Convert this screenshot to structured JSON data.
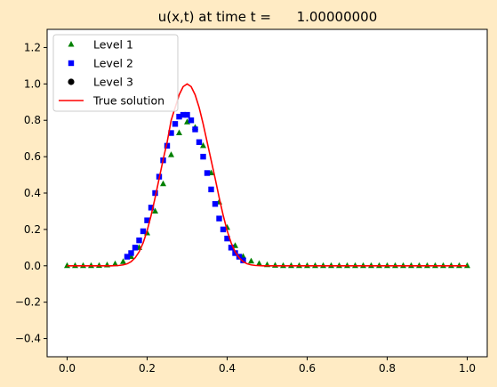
{
  "figure": {
    "background_color": "#ffebc4",
    "title": "u(x,t) at time t =      1.00000000"
  },
  "chart_data": {
    "type": "scatter",
    "title": "u(x,t) at time t =      1.00000000",
    "xlabel": "",
    "ylabel": "",
    "xlim": [
      -0.05,
      1.05
    ],
    "ylim": [
      -0.5,
      1.3
    ],
    "x_ticks": [
      "0.0",
      "0.2",
      "0.4",
      "0.6",
      "0.8",
      "1.0"
    ],
    "y_ticks": [
      "−0.4",
      "−0.2",
      "0.0",
      "0.2",
      "0.4",
      "0.6",
      "0.8",
      "1.0",
      "1.2"
    ],
    "grid": false,
    "legend_position": "top-left",
    "legend": [
      "Level 1",
      "Level 2",
      "Level 3",
      "True solution"
    ],
    "series": [
      {
        "name": "Level 1",
        "marker": "triangle-up",
        "color": "#008000",
        "x": [
          0.0,
          0.02,
          0.04,
          0.06,
          0.08,
          0.1,
          0.12,
          0.14,
          0.16,
          0.18,
          0.2,
          0.22,
          0.24,
          0.26,
          0.28,
          0.3,
          0.32,
          0.34,
          0.36,
          0.38,
          0.4,
          0.42,
          0.44,
          0.46,
          0.48,
          0.5,
          0.52,
          0.54,
          0.56,
          0.58,
          0.6,
          0.62,
          0.64,
          0.66,
          0.68,
          0.7,
          0.72,
          0.74,
          0.76,
          0.78,
          0.8,
          0.82,
          0.84,
          0.86,
          0.88,
          0.9,
          0.92,
          0.94,
          0.96,
          0.98,
          1.0
        ],
        "y": [
          0.0,
          0.0,
          0.0,
          0.0,
          0.001,
          0.004,
          0.01,
          0.022,
          0.05,
          0.1,
          0.18,
          0.3,
          0.45,
          0.61,
          0.73,
          0.79,
          0.76,
          0.66,
          0.51,
          0.35,
          0.21,
          0.11,
          0.05,
          0.025,
          0.012,
          0.005,
          0.002,
          0.0,
          0.0,
          0.0,
          0.0,
          0.0,
          0.0,
          0.0,
          0.0,
          0.0,
          0.0,
          0.0,
          0.0,
          0.0,
          0.0,
          0.0,
          0.0,
          0.0,
          0.0,
          0.0,
          0.0,
          0.0,
          0.0,
          0.0,
          0.0
        ]
      },
      {
        "name": "Level 2",
        "marker": "square",
        "color": "#0000ff",
        "x": [
          0.15,
          0.16,
          0.17,
          0.18,
          0.19,
          0.2,
          0.21,
          0.22,
          0.23,
          0.24,
          0.25,
          0.26,
          0.27,
          0.28,
          0.29,
          0.3,
          0.31,
          0.32,
          0.33,
          0.34,
          0.35,
          0.36,
          0.37,
          0.38,
          0.39,
          0.4,
          0.41,
          0.42,
          0.43,
          0.44
        ],
        "y": [
          0.05,
          0.07,
          0.1,
          0.14,
          0.19,
          0.25,
          0.32,
          0.4,
          0.49,
          0.58,
          0.66,
          0.73,
          0.78,
          0.82,
          0.83,
          0.83,
          0.8,
          0.75,
          0.68,
          0.6,
          0.51,
          0.42,
          0.34,
          0.26,
          0.2,
          0.15,
          0.1,
          0.07,
          0.05,
          0.03
        ]
      },
      {
        "name": "Level 3",
        "marker": "circle",
        "color": "#000000",
        "x": [],
        "y": []
      },
      {
        "name": "True solution",
        "line": "solid",
        "color": "#ff0000",
        "x": [
          0.0,
          0.01,
          0.02,
          0.03,
          0.04,
          0.05,
          0.06,
          0.07,
          0.08,
          0.09,
          0.1,
          0.11,
          0.12,
          0.13,
          0.14,
          0.15,
          0.16,
          0.17,
          0.18,
          0.19,
          0.2,
          0.21,
          0.22,
          0.23,
          0.24,
          0.25,
          0.26,
          0.27,
          0.28,
          0.29,
          0.3,
          0.31,
          0.32,
          0.33,
          0.34,
          0.35,
          0.36,
          0.37,
          0.38,
          0.39,
          0.4,
          0.41,
          0.42,
          0.43,
          0.44,
          0.45,
          0.46,
          0.47,
          0.48,
          0.49,
          0.5,
          0.52,
          0.54,
          0.56,
          0.58,
          0.6,
          0.65,
          0.7,
          0.75,
          0.8,
          0.85,
          0.9,
          0.95,
          1.0
        ],
        "y": [
          0.0,
          0.0,
          0.0,
          0.0,
          0.0,
          0.0,
          0.0,
          0.0,
          0.0,
          0.0,
          0.0,
          0.0,
          0.001,
          0.002,
          0.005,
          0.011,
          0.023,
          0.044,
          0.077,
          0.126,
          0.193,
          0.278,
          0.375,
          0.48,
          0.584,
          0.68,
          0.8,
          0.87,
          0.94,
          0.985,
          1.0,
          0.985,
          0.94,
          0.87,
          0.78,
          0.68,
          0.58,
          0.48,
          0.375,
          0.278,
          0.193,
          0.126,
          0.077,
          0.044,
          0.023,
          0.011,
          0.005,
          0.002,
          0.001,
          0.0,
          0.0,
          0.0,
          0.0,
          0.0,
          0.0,
          0.0,
          0.0,
          0.0,
          0.0,
          0.0,
          0.0,
          0.0,
          0.0,
          0.0
        ]
      }
    ]
  }
}
